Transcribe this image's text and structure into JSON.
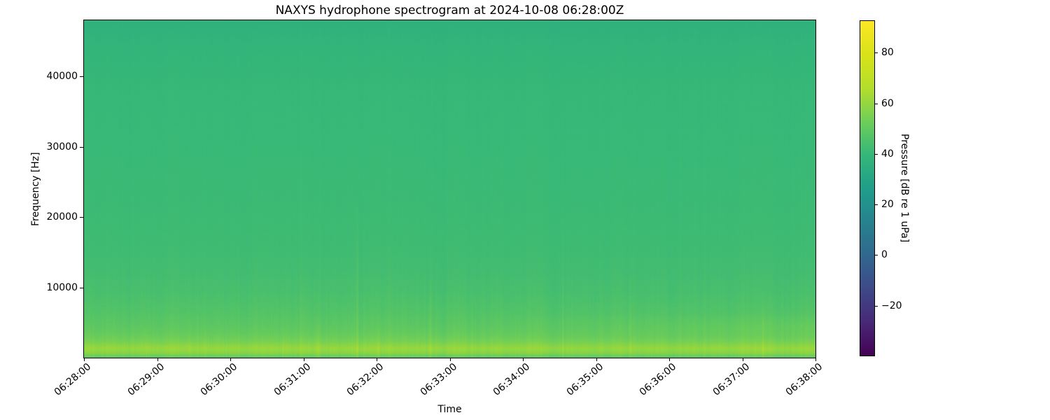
{
  "chart_data": {
    "type": "heatmap",
    "subtype": "spectrogram",
    "title": "NAXYS hydrophone spectrogram at 2024-10-08 06:28:00Z",
    "xlabel": "Time",
    "ylabel": "Frequency [Hz]",
    "x_tick_labels": [
      "06:28:00",
      "06:29:00",
      "06:30:00",
      "06:31:00",
      "06:32:00",
      "06:33:00",
      "06:34:00",
      "06:35:00",
      "06:36:00",
      "06:37:00",
      "06:38:00"
    ],
    "x_range": [
      "06:28:00",
      "06:38:00"
    ],
    "x_span_minutes": 10,
    "y_tick_values": [
      10000,
      20000,
      30000,
      40000
    ],
    "y_range_hz": [
      0,
      48000
    ],
    "grid": false,
    "legend": "none",
    "colorbar": {
      "label": "Pressure [dB re 1 uPa]",
      "tick_values": [
        80,
        60,
        40,
        20,
        0,
        -20
      ],
      "tick_labels": [
        "80",
        "60",
        "40",
        "20",
        "0",
        "−20"
      ],
      "vmin": -39.7,
      "vmax": 92.5,
      "colormap": "viridis",
      "position": "right"
    },
    "viridis_stops": [
      [
        0.0,
        "#440154"
      ],
      [
        0.1,
        "#482878"
      ],
      [
        0.2,
        "#3e4989"
      ],
      [
        0.3,
        "#31688e"
      ],
      [
        0.4,
        "#26828e"
      ],
      [
        0.5,
        "#1f9e89"
      ],
      [
        0.6,
        "#35b779"
      ],
      [
        0.7,
        "#6ece58"
      ],
      [
        0.8,
        "#b5de2b"
      ],
      [
        0.9,
        "#d8e219"
      ],
      [
        1.0,
        "#fde725"
      ]
    ],
    "freq_profile_db": [
      [
        0,
        49
      ],
      [
        150,
        51
      ],
      [
        400,
        55
      ],
      [
        700,
        58
      ],
      [
        1000,
        60
      ],
      [
        1400,
        60
      ],
      [
        1900,
        56.5
      ],
      [
        2600,
        53
      ],
      [
        3500,
        50.5
      ],
      [
        4800,
        48.5
      ],
      [
        6500,
        46.5
      ],
      [
        9000,
        44.5
      ],
      [
        12000,
        43
      ],
      [
        16000,
        42
      ],
      [
        22000,
        41.2
      ],
      [
        30000,
        40.6
      ],
      [
        38000,
        40
      ],
      [
        44000,
        38.5
      ],
      [
        48000,
        36.5
      ]
    ],
    "texture": {
      "seed": 20241008,
      "column_noise_db": 1.1,
      "column_jitter_db": 1.6,
      "row_noise_db": 0.8,
      "pixel_noise_db": 1.5,
      "streak_probability": 0.02,
      "streak_gain_db_min": 1.2,
      "streak_gain_db_max": 4.5,
      "low_freq_emphasis_hz": 16000,
      "events": [
        {
          "t_frac": 0.373,
          "gain_db": 4.5,
          "max_freq_hz": 22000
        },
        {
          "t_frac": 0.32,
          "gain_db": 3.0,
          "max_freq_hz": 6000
        },
        {
          "t_frac": 0.402,
          "gain_db": 3.0,
          "max_freq_hz": 5000
        },
        {
          "t_frac": 0.746,
          "gain_db": 2.5,
          "max_freq_hz": 12000
        },
        {
          "t_frac": 0.928,
          "gain_db": 3.5,
          "max_freq_hz": 9000
        }
      ],
      "late_band": {
        "t_start_frac": 0.5,
        "freq_hz": [
          3000,
          6500
        ],
        "peak_hz": 4500,
        "gain_db": 1.8
      }
    }
  }
}
